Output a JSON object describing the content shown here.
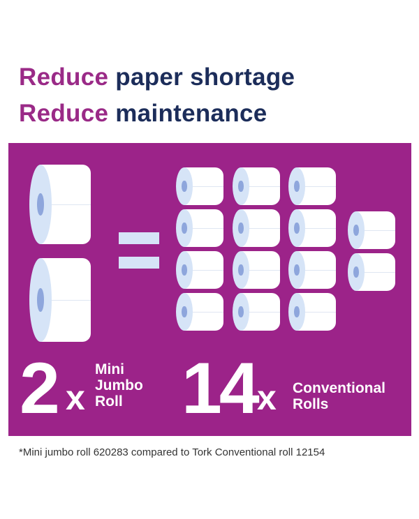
{
  "headline": {
    "line1": {
      "accent": "Reduce",
      "rest": "paper shortage"
    },
    "line2": {
      "accent": "Reduce",
      "rest": "maintenance"
    }
  },
  "comparison": {
    "left": {
      "count": "2",
      "multiplier": "x",
      "label_lines": [
        "Mini",
        "Jumbo",
        "Roll"
      ]
    },
    "right": {
      "count": "14",
      "multiplier": "x",
      "label_lines": [
        "Conventional",
        "Rolls"
      ]
    }
  },
  "footnote": "*Mini jumbo roll 620283 compared to Tork Conventional roll 12154",
  "colors": {
    "panel": "#9c2389",
    "accent": "#9a2a87",
    "navy": "#1c2d5a",
    "roll_side": "#d6e4f7",
    "roll_core": "#8ea6dc"
  }
}
